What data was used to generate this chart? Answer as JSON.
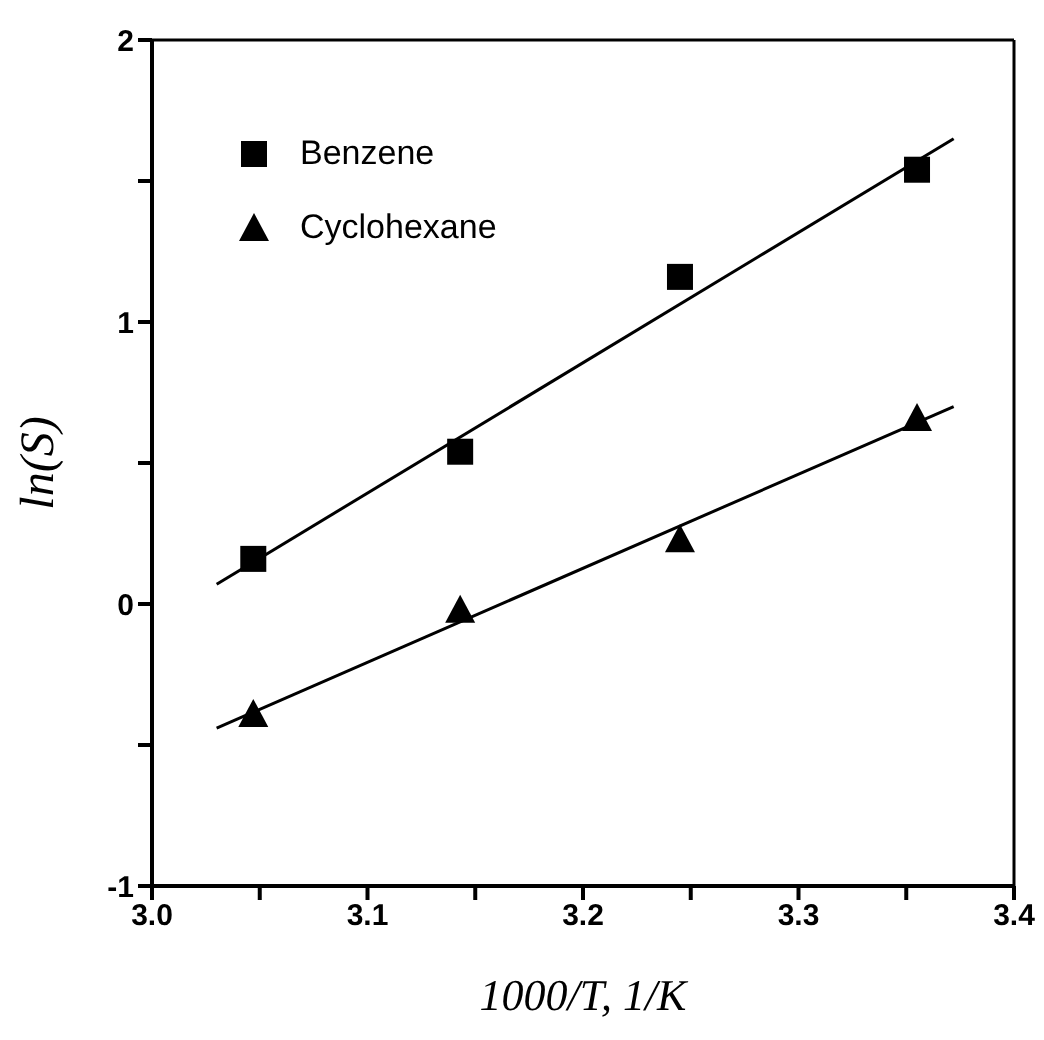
{
  "chart_data": {
    "type": "scatter",
    "xlabel": "1000/T, 1/K",
    "ylabel": "ln(S)",
    "xlim": [
      3.0,
      3.4
    ],
    "ylim": [
      -1,
      2
    ],
    "xticks": [
      {
        "value": 3.0,
        "label": "3.0"
      },
      {
        "value": 3.05,
        "label": null
      },
      3.1,
      {
        "value": 3.15,
        "label": null
      },
      3.2,
      {
        "value": 3.25,
        "label": null
      },
      3.3,
      {
        "value": 3.35,
        "label": null
      },
      3.4
    ],
    "yticks": [
      -1,
      {
        "value": -0.5,
        "label": null
      },
      0,
      {
        "value": 0.5,
        "label": null
      },
      1,
      {
        "value": 1.5,
        "label": null
      },
      2
    ],
    "legend": "top left",
    "series": [
      {
        "name": "Benzene",
        "marker": "square",
        "color": "#000000",
        "x": [
          3.047,
          3.143,
          3.245,
          3.355
        ],
        "values": [
          0.16,
          0.54,
          1.16,
          1.54
        ]
      },
      {
        "name": "Cyclohexane",
        "marker": "triangle",
        "color": "#000000",
        "x": [
          3.047,
          3.143,
          3.245,
          3.355
        ],
        "values": [
          -0.39,
          -0.02,
          0.23,
          0.66
        ]
      },
      {
        "type": "line",
        "marker": "none",
        "color": "#000000",
        "x": [
          3.03,
          3.372
        ],
        "values": [
          0.07,
          1.65
        ]
      },
      {
        "type": "line",
        "marker": "none",
        "color": "#000000",
        "x": [
          3.03,
          3.372
        ],
        "values": [
          -0.44,
          0.7
        ]
      }
    ]
  }
}
